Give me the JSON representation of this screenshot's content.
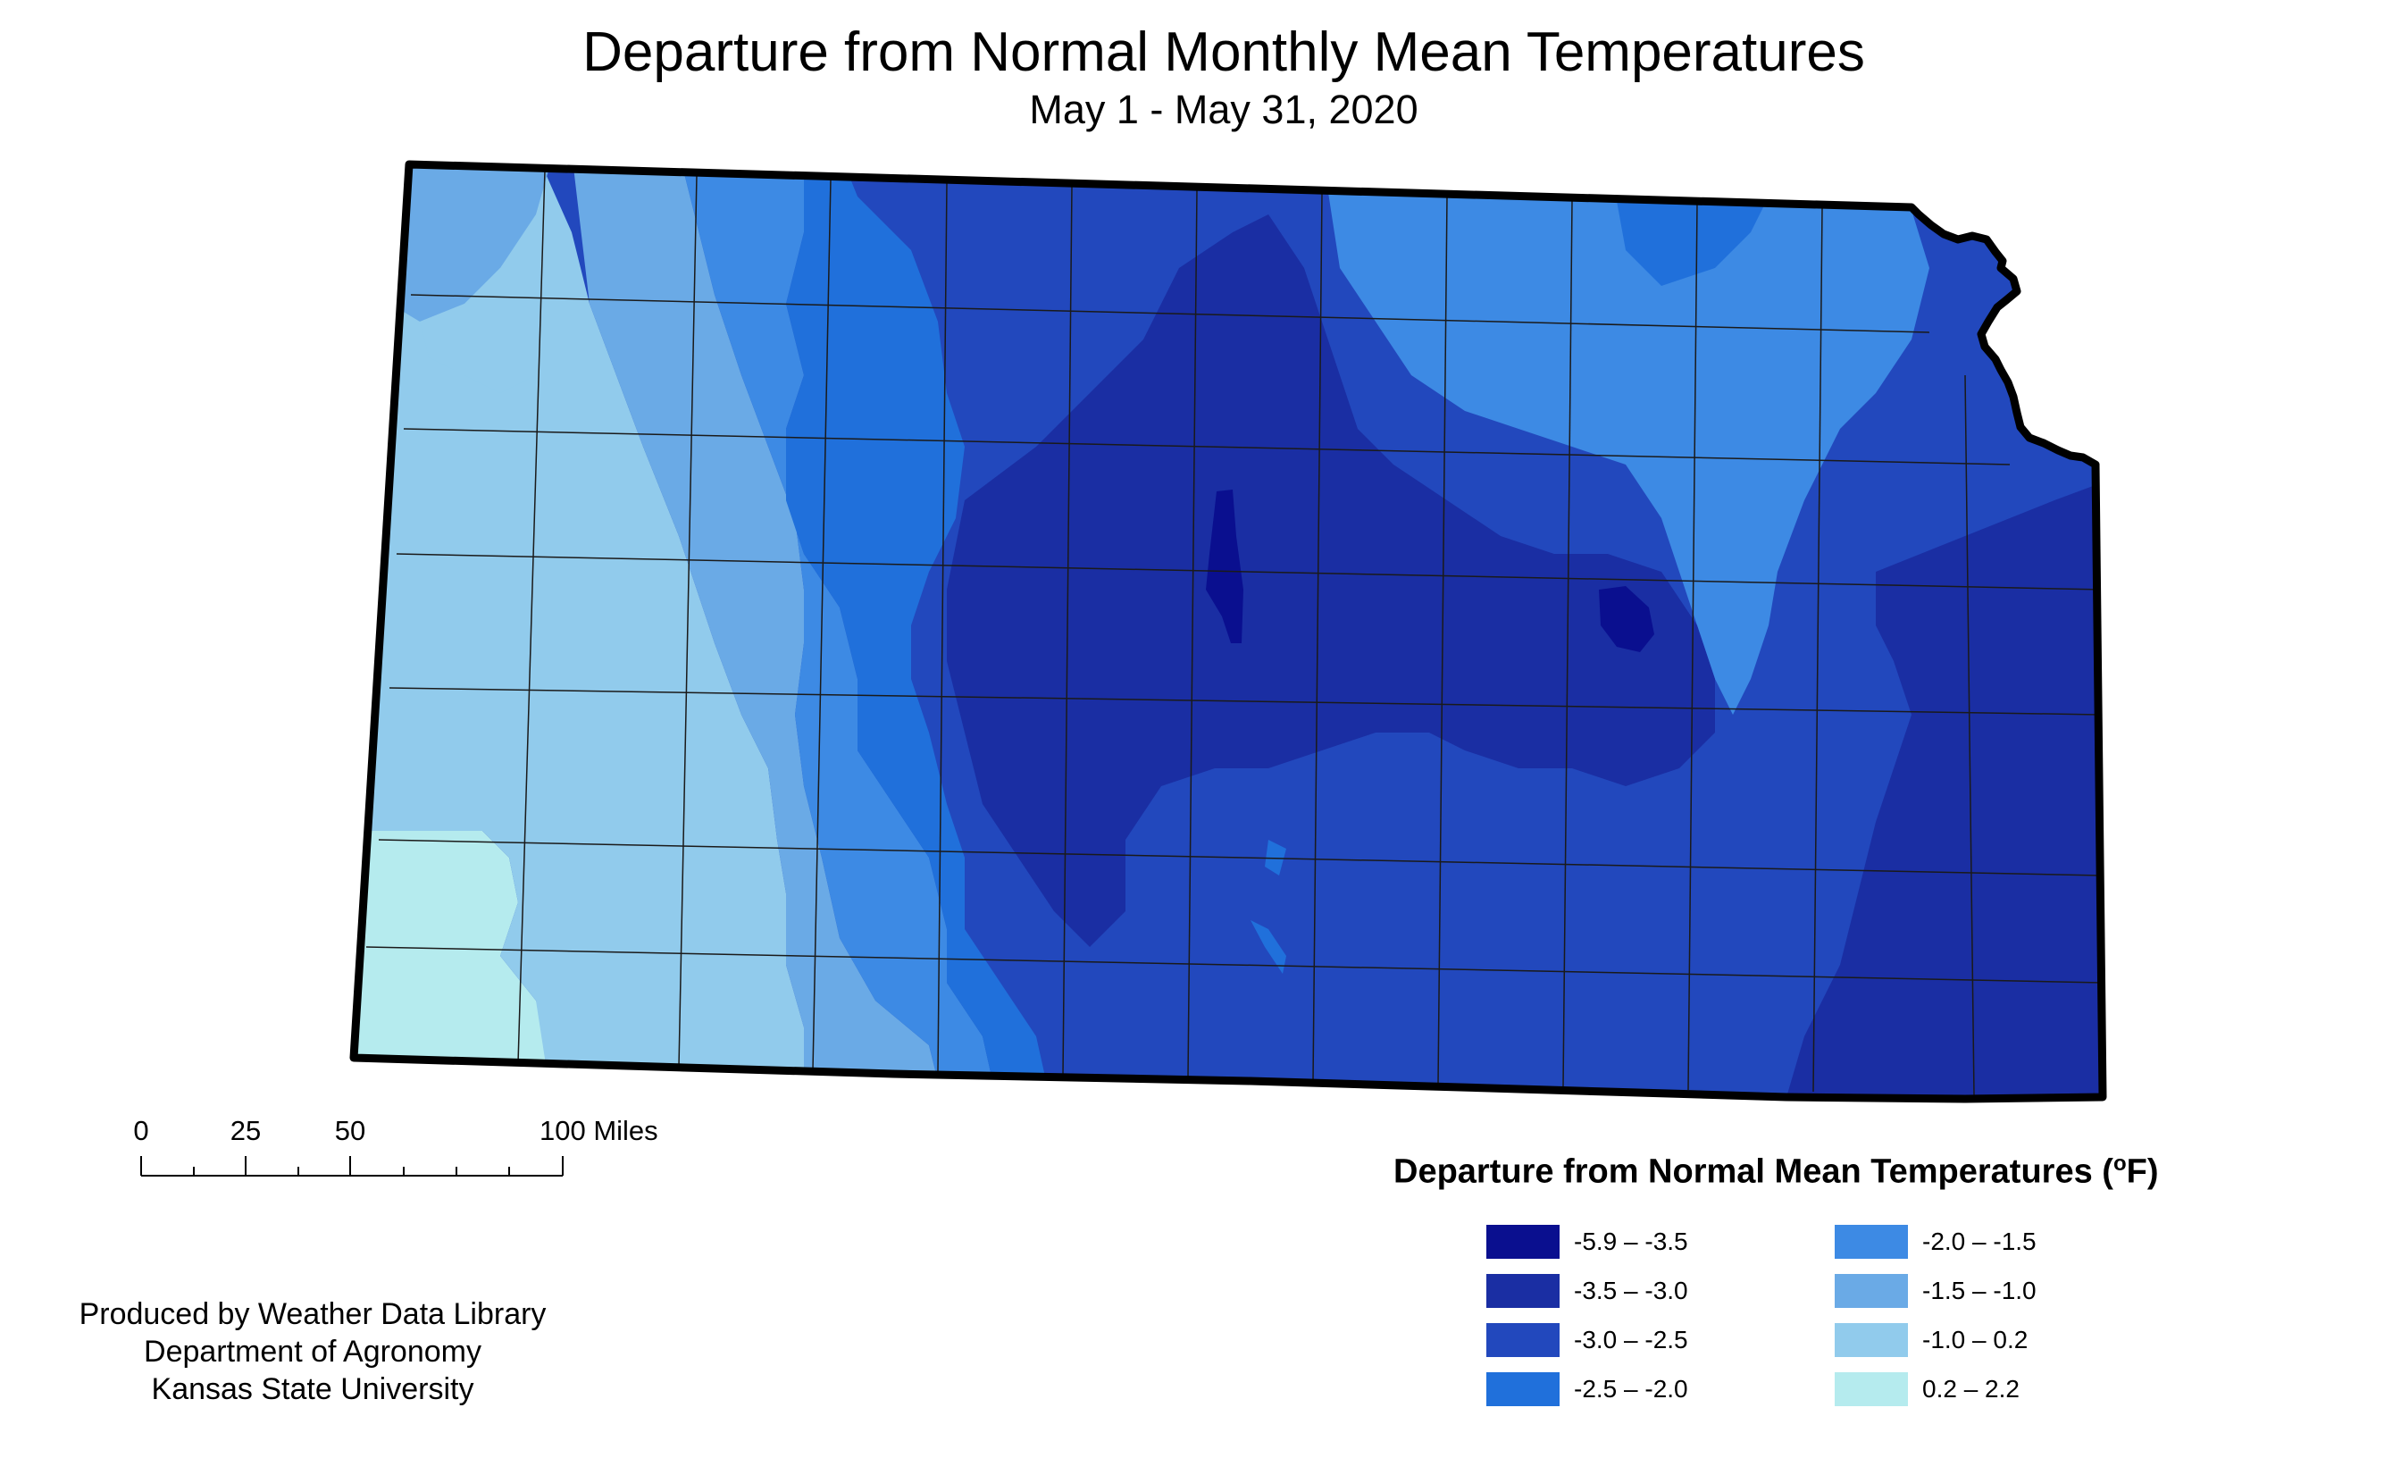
{
  "title": "Departure from Normal Monthly Mean Temperatures",
  "subtitle": "May 1 - May 31, 2020",
  "map": {
    "region": "Kansas",
    "outline_color": "#000000",
    "county_line_color": "#1a1a1a"
  },
  "scale_bar": {
    "labels": [
      "0",
      "25",
      "50",
      "100 Miles"
    ]
  },
  "credits": {
    "line1": "Produced by Weather Data Library",
    "line2": "Department of Agronomy",
    "line3": "Kansas State University"
  },
  "legend": {
    "title": "Departure from Normal Mean Temperatures (",
    "title_degree": "o",
    "title_unit": "F)",
    "items": [
      {
        "label": "-5.9 – -3.5",
        "color": "#0a0f8f"
      },
      {
        "label": "-3.5 – -3.0",
        "color": "#1a2ea3"
      },
      {
        "label": "-3.0 – -2.5",
        "color": "#2248bd"
      },
      {
        "label": "-2.5 – -2.0",
        "color": "#2070db"
      },
      {
        "label": "-2.0 – -1.5",
        "color": "#3d8ae4"
      },
      {
        "label": "-1.5 – -1.0",
        "color": "#6aaae6"
      },
      {
        "label": "-1.0 – 0.2",
        "color": "#91cbec"
      },
      {
        "label": "0.2 – 2.2",
        "color": "#b5ebee"
      }
    ]
  }
}
